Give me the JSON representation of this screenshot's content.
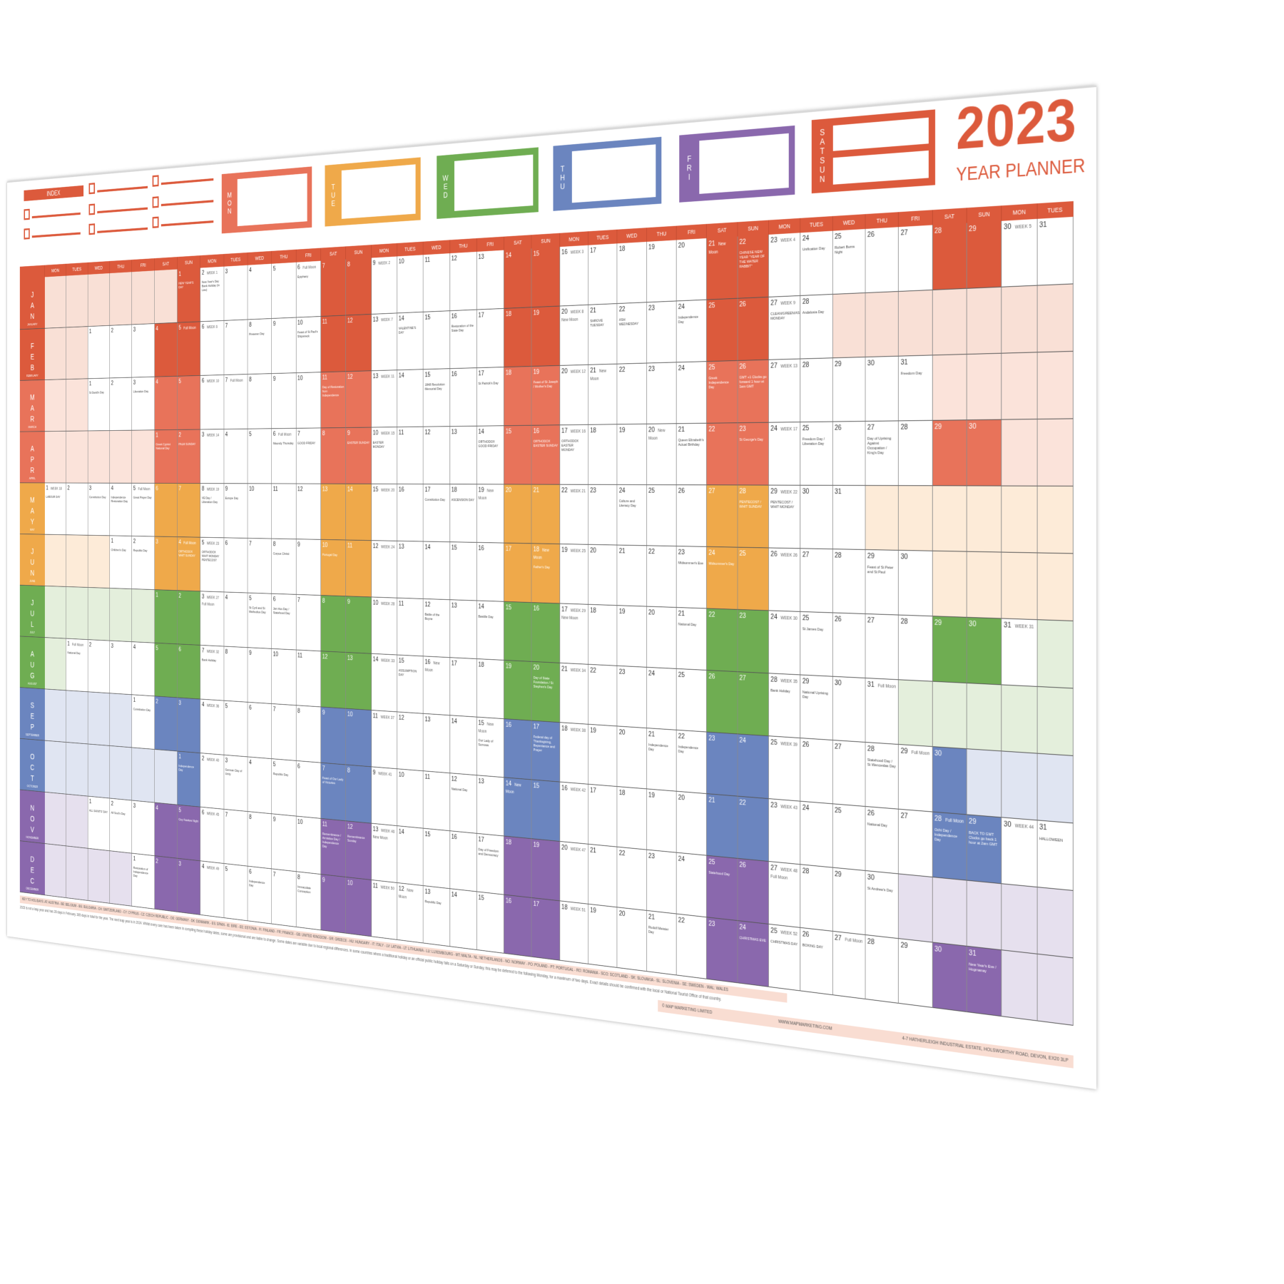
{
  "header": {
    "title": "2023",
    "subtitle": "YEAR PLANNER",
    "index_label": "INDEX",
    "day_boxes": [
      {
        "label": "MON",
        "color": "#e8735a"
      },
      {
        "label": "TUE",
        "color": "#efa94a"
      },
      {
        "label": "WED",
        "color": "#6fad52"
      },
      {
        "label": "THU",
        "color": "#6b85bf"
      },
      {
        "label": "FRI",
        "color": "#8a68ad"
      },
      {
        "label": "SATSUN",
        "color": "#dc5a3c"
      }
    ]
  },
  "weekday_headers": [
    "MON",
    "TUES",
    "WED",
    "THU",
    "FRI",
    "SAT",
    "SUN",
    "MON",
    "TUES",
    "WED",
    "THU",
    "FRI",
    "SAT",
    "SUN",
    "MON",
    "TUES",
    "WED",
    "THU",
    "FRI",
    "SAT",
    "SUN",
    "MON",
    "TUES",
    "WED",
    "THU",
    "FRI",
    "SAT",
    "SUN",
    "MON",
    "TUES",
    "WED",
    "THU",
    "FRI",
    "SAT",
    "SUN",
    "MON",
    "TUES"
  ],
  "months": [
    {
      "letters": "JAN",
      "name": "JANUARY",
      "color": "#dc5a3c",
      "tint": "#f9e0d6",
      "starts_on": "SUN",
      "days": 31,
      "notes": {
        "2": "WEEK 1",
        "6": "Full Moon",
        "9": "WEEK 2",
        "16": "WEEK 3",
        "21": "New Moon",
        "23": "WEEK 4",
        "30": "WEEK 5"
      },
      "events": {
        "1": "NEW YEAR'S DAY",
        "2": "New Year's Day Bank Holiday (in Lieu)",
        "6": "Epiphany",
        "22": "CHINESE NEW YEAR \"YEAR OF THE WATER RABBIT\"",
        "24": "Unification Day",
        "25": "Robert Burns Night"
      }
    },
    {
      "letters": "FEB",
      "name": "FEBRUARY",
      "color": "#dc5a3c",
      "tint": "#f9e0d6",
      "starts_on": "WED",
      "days": 28,
      "notes": {
        "5": "Full Moon",
        "6": "WEEK 6",
        "13": "WEEK 7",
        "20": "WEEK 8 New Moon",
        "27": "WEEK 9"
      },
      "events": {
        "8": "Preseren Day",
        "10": "Feast of St Paul's Shipwreck",
        "14": "VALENTINE'S DAY",
        "16": "Restoration of the State Day",
        "21": "SHROVE TUESDAY",
        "22": "ASH WEDNESDAY",
        "24": "Independence Day",
        "27": "CLEAN/GREEN/ASH MONDAY",
        "28": "Andalusia Day"
      }
    },
    {
      "letters": "MAR",
      "name": "MARCH",
      "color": "#e8735a",
      "tint": "#fbe3da",
      "starts_on": "WED",
      "days": 31,
      "notes": {
        "6": "WEEK 10",
        "7": "Full Moon",
        "13": "WEEK 11",
        "20": "WEEK 12",
        "21": "New Moon",
        "27": "WEEK 13"
      },
      "events": {
        "1": "St David's Day",
        "3": "Liberation Day",
        "11": "Day of Restoration from Independence",
        "15": "1848 Revolution Memorial Day",
        "17": "St Patrick's Day",
        "19": "Feast of St Joseph / Mother's Day",
        "25": "Greek Independence Day",
        "26": "GMT +1 Clocks go forward 1 hour at 1am GMT",
        "31": "Freedom Day"
      }
    },
    {
      "letters": "APR",
      "name": "APRIL",
      "color": "#e8735a",
      "tint": "#fbe3da",
      "starts_on": "SAT",
      "days": 30,
      "notes": {
        "3": "WEEK 14",
        "6": "Full Moon",
        "10": "WEEK 15",
        "17": "WEEK 16",
        "20": "New Moon",
        "24": "WEEK 17"
      },
      "events": {
        "1": "Greek Cypriot National Day",
        "2": "PALM SUNDAY",
        "6": "Maundy Thursday",
        "7": "GOOD FRIDAY",
        "9": "EASTER SUNDAY",
        "10": "EASTER MONDAY",
        "14": "ORTHODOX GOOD FRIDAY",
        "16": "ORTHODOX EASTER SUNDAY",
        "17": "ORTHODOX EASTER MONDAY",
        "21": "Queen Elizabeth's Actual Birthday",
        "23": "St George's Day",
        "25": "Freedom Day / Liberation Day",
        "27": "Day of Uprising Against Occupation / King's Day"
      }
    },
    {
      "letters": "MAY",
      "name": "MAY",
      "color": "#efa94a",
      "tint": "#fdebd8",
      "starts_on": "MON",
      "days": 31,
      "notes": {
        "1": "WEEK 18",
        "5": "Full Moon",
        "8": "WEEK 19",
        "15": "WEEK 20",
        "19": "New Moon",
        "22": "WEEK 21",
        "29": "WEEK 22"
      },
      "events": {
        "1": "LABOUR DAY",
        "3": "Constitution Day",
        "4": "Independence Restoration Day",
        "5": "Great Prayer Day",
        "8": "VE Day / Liberation Day",
        "9": "Europe Day",
        "17": "Constitution Day",
        "18": "ASCENSION DAY",
        "24": "Culture and Literacy Day",
        "28": "PENTECOST / WHIT SUNDAY",
        "29": "PENTECOST / WHIT MONDAY"
      }
    },
    {
      "letters": "JUN",
      "name": "JUNE",
      "color": "#efa94a",
      "tint": "#fdebd8",
      "starts_on": "THU",
      "days": 30,
      "notes": {
        "4": "Full Moon",
        "5": "WEEK 23",
        "12": "WEEK 24",
        "18": "New Moon",
        "19": "WEEK 25",
        "26": "WEEK 26"
      },
      "events": {
        "1": "Children's Day",
        "2": "Republic Day",
        "4": "ORTHODOX WHIT SUNDAY",
        "5": "ORTHODOX WHIT MONDAY PENTECOST",
        "8": "Corpus Christi",
        "10": "Portugal Day",
        "18": "Father's Day",
        "23": "Midsummer's Eve",
        "24": "Midsummer's Day",
        "29": "Feast of St Peter and St Paul"
      }
    },
    {
      "letters": "JUL",
      "name": "JULY",
      "color": "#6fad52",
      "tint": "#e4efdc",
      "starts_on": "SAT",
      "days": 31,
      "notes": {
        "3": "WEEK 27 Full Moon",
        "10": "WEEK 28",
        "17": "WEEK 29 New Moon",
        "24": "WEEK 30",
        "31": "WEEK 31"
      },
      "events": {
        "5": "St Cyril and St Methodius Day",
        "6": "Jan Hus Day / Statehood Day",
        "12": "Battle of the Boyne",
        "14": "Bastille Day",
        "21": "National Day",
        "25": "St James Day"
      }
    },
    {
      "letters": "AUG",
      "name": "AUGUST",
      "color": "#6fad52",
      "tint": "#e4efdc",
      "starts_on": "TUE",
      "days": 31,
      "notes": {
        "1": "Full Moon",
        "7": "WEEK 32",
        "14": "WEEK 33",
        "16": "New Moon",
        "21": "WEEK 34",
        "28": "WEEK 35",
        "31": "Full Moon"
      },
      "events": {
        "1": "National Day",
        "7": "Bank Holiday",
        "15": "ASSUMPTION DAY",
        "20": "Day of State Foundation / St Stephen's Day",
        "28": "Bank Holiday",
        "29": "National Uprising Day"
      }
    },
    {
      "letters": "SEP",
      "name": "SEPTEMBER",
      "color": "#6b85bf",
      "tint": "#e0e5f2",
      "starts_on": "FRI",
      "days": 30,
      "notes": {
        "4": "WEEK 36",
        "11": "WEEK 37",
        "15": "New Moon",
        "18": "WEEK 38",
        "25": "WEEK 39",
        "29": "Full Moon"
      },
      "events": {
        "1": "Constitution Day",
        "15": "Our Lady of Sorrows",
        "17": "Federal day of Thanksgiving, Repentance and Prayer",
        "21": "Independence Day",
        "22": "Independence Day",
        "28": "Statehood Day / St Wenceslas Day"
      }
    },
    {
      "letters": "OCT",
      "name": "OCTOBER",
      "color": "#6b85bf",
      "tint": "#e0e5f2",
      "starts_on": "SUN",
      "days": 31,
      "notes": {
        "2": "WEEK 40",
        "9": "WEEK 41",
        "14": "New Moon",
        "16": "WEEK 42",
        "23": "WEEK 43",
        "28": "Full Moon",
        "30": "WEEK 44"
      },
      "events": {
        "1": "Independence Day",
        "3": "German Day of Unity",
        "5": "Republic Day",
        "7": "Feast of Our Lady of Victories",
        "12": "National Day",
        "26": "National Day",
        "28": "Ochi Day / Independence Day",
        "29": "BACK TO GMT Clocks go back 1 hour at 2am GMT",
        "31": "HALLOWEEN"
      }
    },
    {
      "letters": "NOV",
      "name": "NOVEMBER",
      "color": "#8a68ad",
      "tint": "#e6e0ee",
      "starts_on": "WED",
      "days": 30,
      "notes": {
        "6": "WEEK 45",
        "13": "WEEK 46 New Moon",
        "20": "WEEK 47",
        "27": "WEEK 48 Full Moon"
      },
      "events": {
        "1": "ALL SAINTS' DAY",
        "2": "All Soul's Day",
        "5": "Guy Fawkes Night",
        "11": "Remembrance / Armistice Day / Independence Day",
        "12": "Remembrance Sunday",
        "17": "Day of Freedom and Democracy",
        "25": "Statehood Day",
        "30": "St Andrew's Day"
      }
    },
    {
      "letters": "DEC",
      "name": "DECEMBER",
      "color": "#8a68ad",
      "tint": "#e6e0ee",
      "starts_on": "FRI",
      "days": 31,
      "notes": {
        "4": "WEEK 49",
        "11": "WEEK 50",
        "12": "New Moon",
        "18": "WEEK 51",
        "25": "WEEK 52",
        "27": "Full Moon"
      },
      "events": {
        "1": "Restoration of Independence Day",
        "6": "Independence Day",
        "8": "Immaculate Conception",
        "13": "Republic Day",
        "21": "Rudolf Meister Day",
        "24": "CHRISTMAS EVE",
        "25": "CHRISTMAS DAY",
        "26": "BOXING DAY",
        "31": "New Year's Eve / Hogmanay"
      }
    }
  ],
  "footer": {
    "key": "KEY TO HOLIDAYS: AT: AUSTRIA - BE: BELGIUM - BG: BULGARIA - CH: SWITZERLAND - CY: CYPRUS - CZ: CZECH REPUBLIC - DE: GERMANY - DK: DENMARK - ES: SPAIN - IE: EIRE - EE: ESTONIA - FI: FINLAND - FR: FRANCE - GB: UNITED KINGDOM - GR: GREECE - HU: HUNGARY - IT: ITALY - LV: LATVIA - LT: LITHUANIA - LU: LUXEMBOURG - MT: MALTA - NL: NETHERLANDS - NO: NORWAY - PO: POLAND - PT: PORTUGAL - RO: ROMANIA - SCO: SCOTLAND - SK: SLOVAKIA - SL: SLOVENIA - SE: SWEDEN - WAL: WALES",
    "disclaimer": "2023 is not a leap year and has 28 days in February. 365 days in total for the year. The next leap year is in 2024. Whilst every care has been taken in compiling these holiday dates, some are provisional and are liable to change. Some dates are variable due to local regional differences. In some countries where a traditional holiday or an official public holiday falls on a Saturday or Sunday, this may be deferred to the following Monday, for a maximum of two days. Exact details should be confirmed with the local or National Tourist Office of that country.",
    "copyright": "© MAP MARKETING LIMITED",
    "website": "WWW.MAPMARKETING.COM",
    "address": "4-7 HATHERLEIGH INDUSTRIAL ESTATE, HOLSWORTHY ROAD, DEVON, EX20 3LP"
  }
}
